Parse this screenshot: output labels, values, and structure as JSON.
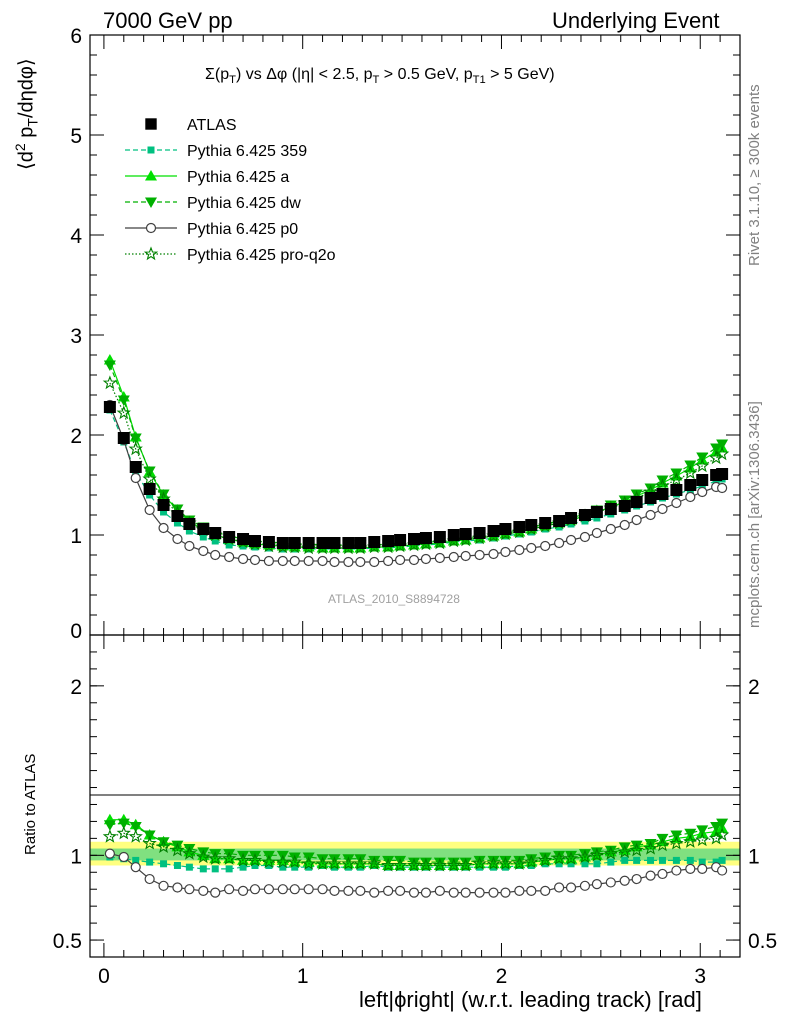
{
  "header": {
    "left": "7000 GeV pp",
    "right": "Underlying Event"
  },
  "side_labels": {
    "rivet": "Rivet 3.1.10, ≥ 300k events",
    "mcplots": "mcplots.cern.ch [arXiv:1306.3436]"
  },
  "watermark": "ATLAS_2010_S8894728",
  "colors": {
    "atlas": "#000000",
    "p359": "#00c080",
    "pa": "#00e000",
    "pdw": "#00b000",
    "pp0": "#404040",
    "pq2o": "#008000",
    "band_outer": "#ffff80",
    "band_inner": "#80e080"
  },
  "chart_data": [
    {
      "type": "scatter",
      "panel": "main",
      "title_parts": {
        "sigma": "Σ(p",
        "sub_t": "T",
        "vs": ") vs Δφ (|η| < 2.5, p",
        "gt1": " > 0.5 GeV, p",
        "sub_t1": "T1",
        "gt2": " > 5 GeV)"
      },
      "ylabel_parts": {
        "a": "⟨d",
        "sup2": "2",
        "b": " p",
        "subT": "T",
        "c": "/dηdφ⟩"
      },
      "ylim": [
        0,
        6
      ],
      "xlim": [
        -0.07,
        3.2
      ],
      "yticks": [
        "1",
        "2",
        "3",
        "4",
        "5",
        "6"
      ],
      "yticks_zero_label": "0",
      "legend": [
        {
          "key": "atlas",
          "label": "ATLAS",
          "marker": "filled-square",
          "line": "none"
        },
        {
          "key": "p359",
          "label": "Pythia 6.425 359",
          "marker": "small-square",
          "line": "dashed"
        },
        {
          "key": "pa",
          "label": "Pythia 6.425 a",
          "marker": "triangle-up",
          "line": "solid"
        },
        {
          "key": "pdw",
          "label": "Pythia 6.425 dw",
          "marker": "triangle-down",
          "line": "dashed"
        },
        {
          "key": "pp0",
          "label": "Pythia 6.425 p0",
          "marker": "open-circle",
          "line": "solid"
        },
        {
          "key": "pq2o",
          "label": "Pythia 6.425 pro-q2o",
          "marker": "open-star",
          "line": "dotted"
        }
      ],
      "x": [
        0.03,
        0.1,
        0.16,
        0.23,
        0.3,
        0.37,
        0.43,
        0.5,
        0.56,
        0.63,
        0.7,
        0.76,
        0.83,
        0.9,
        0.96,
        1.03,
        1.1,
        1.16,
        1.23,
        1.29,
        1.36,
        1.43,
        1.49,
        1.56,
        1.62,
        1.69,
        1.76,
        1.82,
        1.89,
        1.96,
        2.02,
        2.09,
        2.15,
        2.22,
        2.29,
        2.35,
        2.42,
        2.48,
        2.55,
        2.62,
        2.68,
        2.75,
        2.81,
        2.88,
        2.95,
        3.01,
        3.08,
        3.11
      ],
      "series": [
        {
          "key": "atlas",
          "name": "ATLAS",
          "values": [
            2.28,
            1.97,
            1.68,
            1.46,
            1.3,
            1.19,
            1.11,
            1.06,
            1.02,
            0.98,
            0.96,
            0.94,
            0.93,
            0.92,
            0.92,
            0.92,
            0.92,
            0.92,
            0.92,
            0.92,
            0.93,
            0.94,
            0.95,
            0.96,
            0.97,
            0.98,
            1.0,
            1.01,
            1.02,
            1.04,
            1.06,
            1.08,
            1.1,
            1.12,
            1.14,
            1.17,
            1.2,
            1.23,
            1.26,
            1.29,
            1.33,
            1.37,
            1.41,
            1.45,
            1.5,
            1.55,
            1.6,
            1.61
          ]
        },
        {
          "key": "p359",
          "name": "Pythia 6.425 359",
          "values": [
            2.25,
            1.93,
            1.63,
            1.4,
            1.23,
            1.12,
            1.04,
            0.98,
            0.94,
            0.9,
            0.89,
            0.88,
            0.87,
            0.86,
            0.86,
            0.86,
            0.86,
            0.86,
            0.86,
            0.86,
            0.87,
            0.87,
            0.88,
            0.89,
            0.9,
            0.91,
            0.93,
            0.94,
            0.95,
            0.97,
            0.99,
            1.01,
            1.03,
            1.06,
            1.08,
            1.11,
            1.14,
            1.17,
            1.21,
            1.25,
            1.29,
            1.33,
            1.37,
            1.41,
            1.45,
            1.49,
            1.54,
            1.56
          ]
        },
        {
          "key": "pa",
          "name": "Pythia 6.425 a",
          "values": [
            2.75,
            2.38,
            1.98,
            1.63,
            1.4,
            1.25,
            1.13,
            1.06,
            1.0,
            0.96,
            0.93,
            0.91,
            0.9,
            0.89,
            0.88,
            0.88,
            0.87,
            0.87,
            0.87,
            0.87,
            0.88,
            0.88,
            0.89,
            0.9,
            0.91,
            0.92,
            0.94,
            0.95,
            0.97,
            0.99,
            1.01,
            1.03,
            1.06,
            1.09,
            1.12,
            1.15,
            1.19,
            1.23,
            1.28,
            1.33,
            1.39,
            1.45,
            1.52,
            1.59,
            1.67,
            1.75,
            1.83,
            1.87
          ]
        },
        {
          "key": "pdw",
          "name": "Pythia 6.425 dw",
          "values": [
            2.7,
            2.35,
            1.97,
            1.64,
            1.41,
            1.26,
            1.15,
            1.08,
            1.03,
            0.99,
            0.96,
            0.94,
            0.93,
            0.92,
            0.91,
            0.91,
            0.9,
            0.9,
            0.9,
            0.9,
            0.9,
            0.91,
            0.92,
            0.92,
            0.93,
            0.94,
            0.96,
            0.97,
            0.99,
            1.01,
            1.03,
            1.05,
            1.08,
            1.11,
            1.14,
            1.17,
            1.21,
            1.25,
            1.3,
            1.35,
            1.41,
            1.47,
            1.55,
            1.62,
            1.7,
            1.78,
            1.87,
            1.91
          ]
        },
        {
          "key": "pp0",
          "name": "Pythia 6.425 p0",
          "values": [
            2.3,
            1.95,
            1.57,
            1.25,
            1.07,
            0.96,
            0.89,
            0.84,
            0.8,
            0.78,
            0.76,
            0.75,
            0.74,
            0.74,
            0.74,
            0.74,
            0.74,
            0.73,
            0.73,
            0.73,
            0.73,
            0.74,
            0.75,
            0.75,
            0.76,
            0.77,
            0.78,
            0.79,
            0.8,
            0.81,
            0.83,
            0.85,
            0.87,
            0.89,
            0.92,
            0.95,
            0.98,
            1.02,
            1.06,
            1.1,
            1.15,
            1.2,
            1.26,
            1.32,
            1.38,
            1.43,
            1.48,
            1.47
          ]
        },
        {
          "key": "pq2o",
          "name": "Pythia 6.425 pro-q2o",
          "values": [
            2.52,
            2.22,
            1.86,
            1.56,
            1.36,
            1.22,
            1.12,
            1.05,
            1.0,
            0.96,
            0.93,
            0.91,
            0.89,
            0.88,
            0.88,
            0.87,
            0.87,
            0.87,
            0.87,
            0.87,
            0.88,
            0.88,
            0.89,
            0.9,
            0.91,
            0.92,
            0.94,
            0.95,
            0.97,
            0.99,
            1.01,
            1.03,
            1.06,
            1.09,
            1.12,
            1.15,
            1.19,
            1.23,
            1.27,
            1.32,
            1.37,
            1.43,
            1.49,
            1.55,
            1.62,
            1.69,
            1.77,
            1.81
          ]
        }
      ]
    },
    {
      "type": "scatter",
      "panel": "ratio",
      "ylabel": "Ratio to ATLAS",
      "xlabel": "left|ϕright| (w.r.t. leading track) [rad]",
      "ylim": [
        0.4,
        2.3
      ],
      "xlim": [
        -0.07,
        3.2
      ],
      "yticks": [
        "0.5",
        "1",
        "2"
      ],
      "xticks": [
        "0",
        "1",
        "2",
        "3"
      ],
      "band": {
        "outer": [
          0.94,
          1.08
        ],
        "inner": [
          0.97,
          1.04
        ]
      },
      "series": [
        {
          "key": "p359",
          "values": [
            0.99,
            0.98,
            0.97,
            0.96,
            0.95,
            0.94,
            0.93,
            0.92,
            0.92,
            0.92,
            0.93,
            0.94,
            0.94,
            0.93,
            0.93,
            0.93,
            0.94,
            0.93,
            0.93,
            0.93,
            0.94,
            0.93,
            0.93,
            0.93,
            0.93,
            0.93,
            0.93,
            0.93,
            0.93,
            0.93,
            0.93,
            0.94,
            0.94,
            0.95,
            0.95,
            0.95,
            0.95,
            0.95,
            0.96,
            0.97,
            0.97,
            0.97,
            0.97,
            0.97,
            0.97,
            0.96,
            0.96,
            0.97
          ]
        },
        {
          "key": "pa",
          "values": [
            1.21,
            1.21,
            1.18,
            1.12,
            1.08,
            1.05,
            1.02,
            1.0,
            0.98,
            0.98,
            0.97,
            0.97,
            0.97,
            0.97,
            0.96,
            0.96,
            0.95,
            0.95,
            0.95,
            0.95,
            0.95,
            0.94,
            0.94,
            0.94,
            0.94,
            0.94,
            0.94,
            0.94,
            0.95,
            0.95,
            0.95,
            0.95,
            0.96,
            0.97,
            0.98,
            0.98,
            0.99,
            1.0,
            1.02,
            1.03,
            1.05,
            1.06,
            1.08,
            1.1,
            1.11,
            1.13,
            1.14,
            1.16
          ]
        },
        {
          "key": "pdw",
          "values": [
            1.18,
            1.19,
            1.17,
            1.12,
            1.08,
            1.06,
            1.04,
            1.02,
            1.01,
            1.01,
            1.0,
            1.0,
            1.0,
            1.0,
            0.99,
            0.99,
            0.98,
            0.98,
            0.98,
            0.98,
            0.97,
            0.97,
            0.97,
            0.96,
            0.96,
            0.96,
            0.96,
            0.96,
            0.97,
            0.97,
            0.97,
            0.97,
            0.98,
            0.99,
            1.0,
            1.0,
            1.01,
            1.02,
            1.03,
            1.05,
            1.06,
            1.07,
            1.1,
            1.12,
            1.13,
            1.15,
            1.17,
            1.19
          ]
        },
        {
          "key": "pp0",
          "values": [
            1.01,
            0.99,
            0.93,
            0.86,
            0.82,
            0.81,
            0.8,
            0.79,
            0.78,
            0.8,
            0.79,
            0.8,
            0.8,
            0.8,
            0.8,
            0.8,
            0.8,
            0.79,
            0.79,
            0.79,
            0.78,
            0.79,
            0.79,
            0.78,
            0.78,
            0.79,
            0.78,
            0.78,
            0.78,
            0.78,
            0.78,
            0.79,
            0.79,
            0.79,
            0.81,
            0.81,
            0.82,
            0.83,
            0.84,
            0.85,
            0.86,
            0.88,
            0.89,
            0.91,
            0.92,
            0.92,
            0.93,
            0.91
          ]
        },
        {
          "key": "pq2o",
          "values": [
            1.11,
            1.13,
            1.11,
            1.07,
            1.05,
            1.03,
            1.01,
            0.99,
            0.98,
            0.98,
            0.97,
            0.97,
            0.96,
            0.96,
            0.96,
            0.95,
            0.95,
            0.95,
            0.95,
            0.95,
            0.95,
            0.94,
            0.94,
            0.94,
            0.94,
            0.94,
            0.94,
            0.94,
            0.95,
            0.95,
            0.95,
            0.95,
            0.96,
            0.97,
            0.98,
            0.98,
            0.99,
            1.0,
            1.01,
            1.02,
            1.03,
            1.04,
            1.06,
            1.07,
            1.08,
            1.09,
            1.1,
            1.12
          ]
        }
      ]
    }
  ]
}
